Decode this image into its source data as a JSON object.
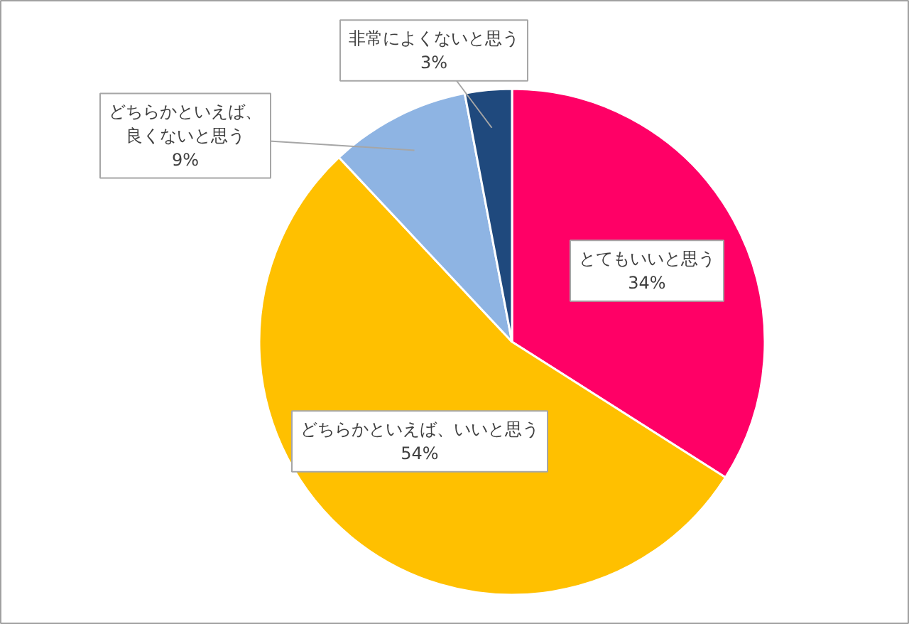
{
  "chart_data": {
    "type": "pie",
    "categories": [
      "とてもいいと思う",
      "どちらかといえば、いいと思う",
      "どちらかといえば、良くないと思う",
      "非常によくないと思う"
    ],
    "values": [
      34,
      54,
      9,
      3
    ],
    "value_labels": [
      "34%",
      "54%",
      "9%",
      "3%"
    ],
    "colors": [
      "#ff0066",
      "#ffc000",
      "#8eb4e3",
      "#1f497d"
    ],
    "legend": false
  }
}
